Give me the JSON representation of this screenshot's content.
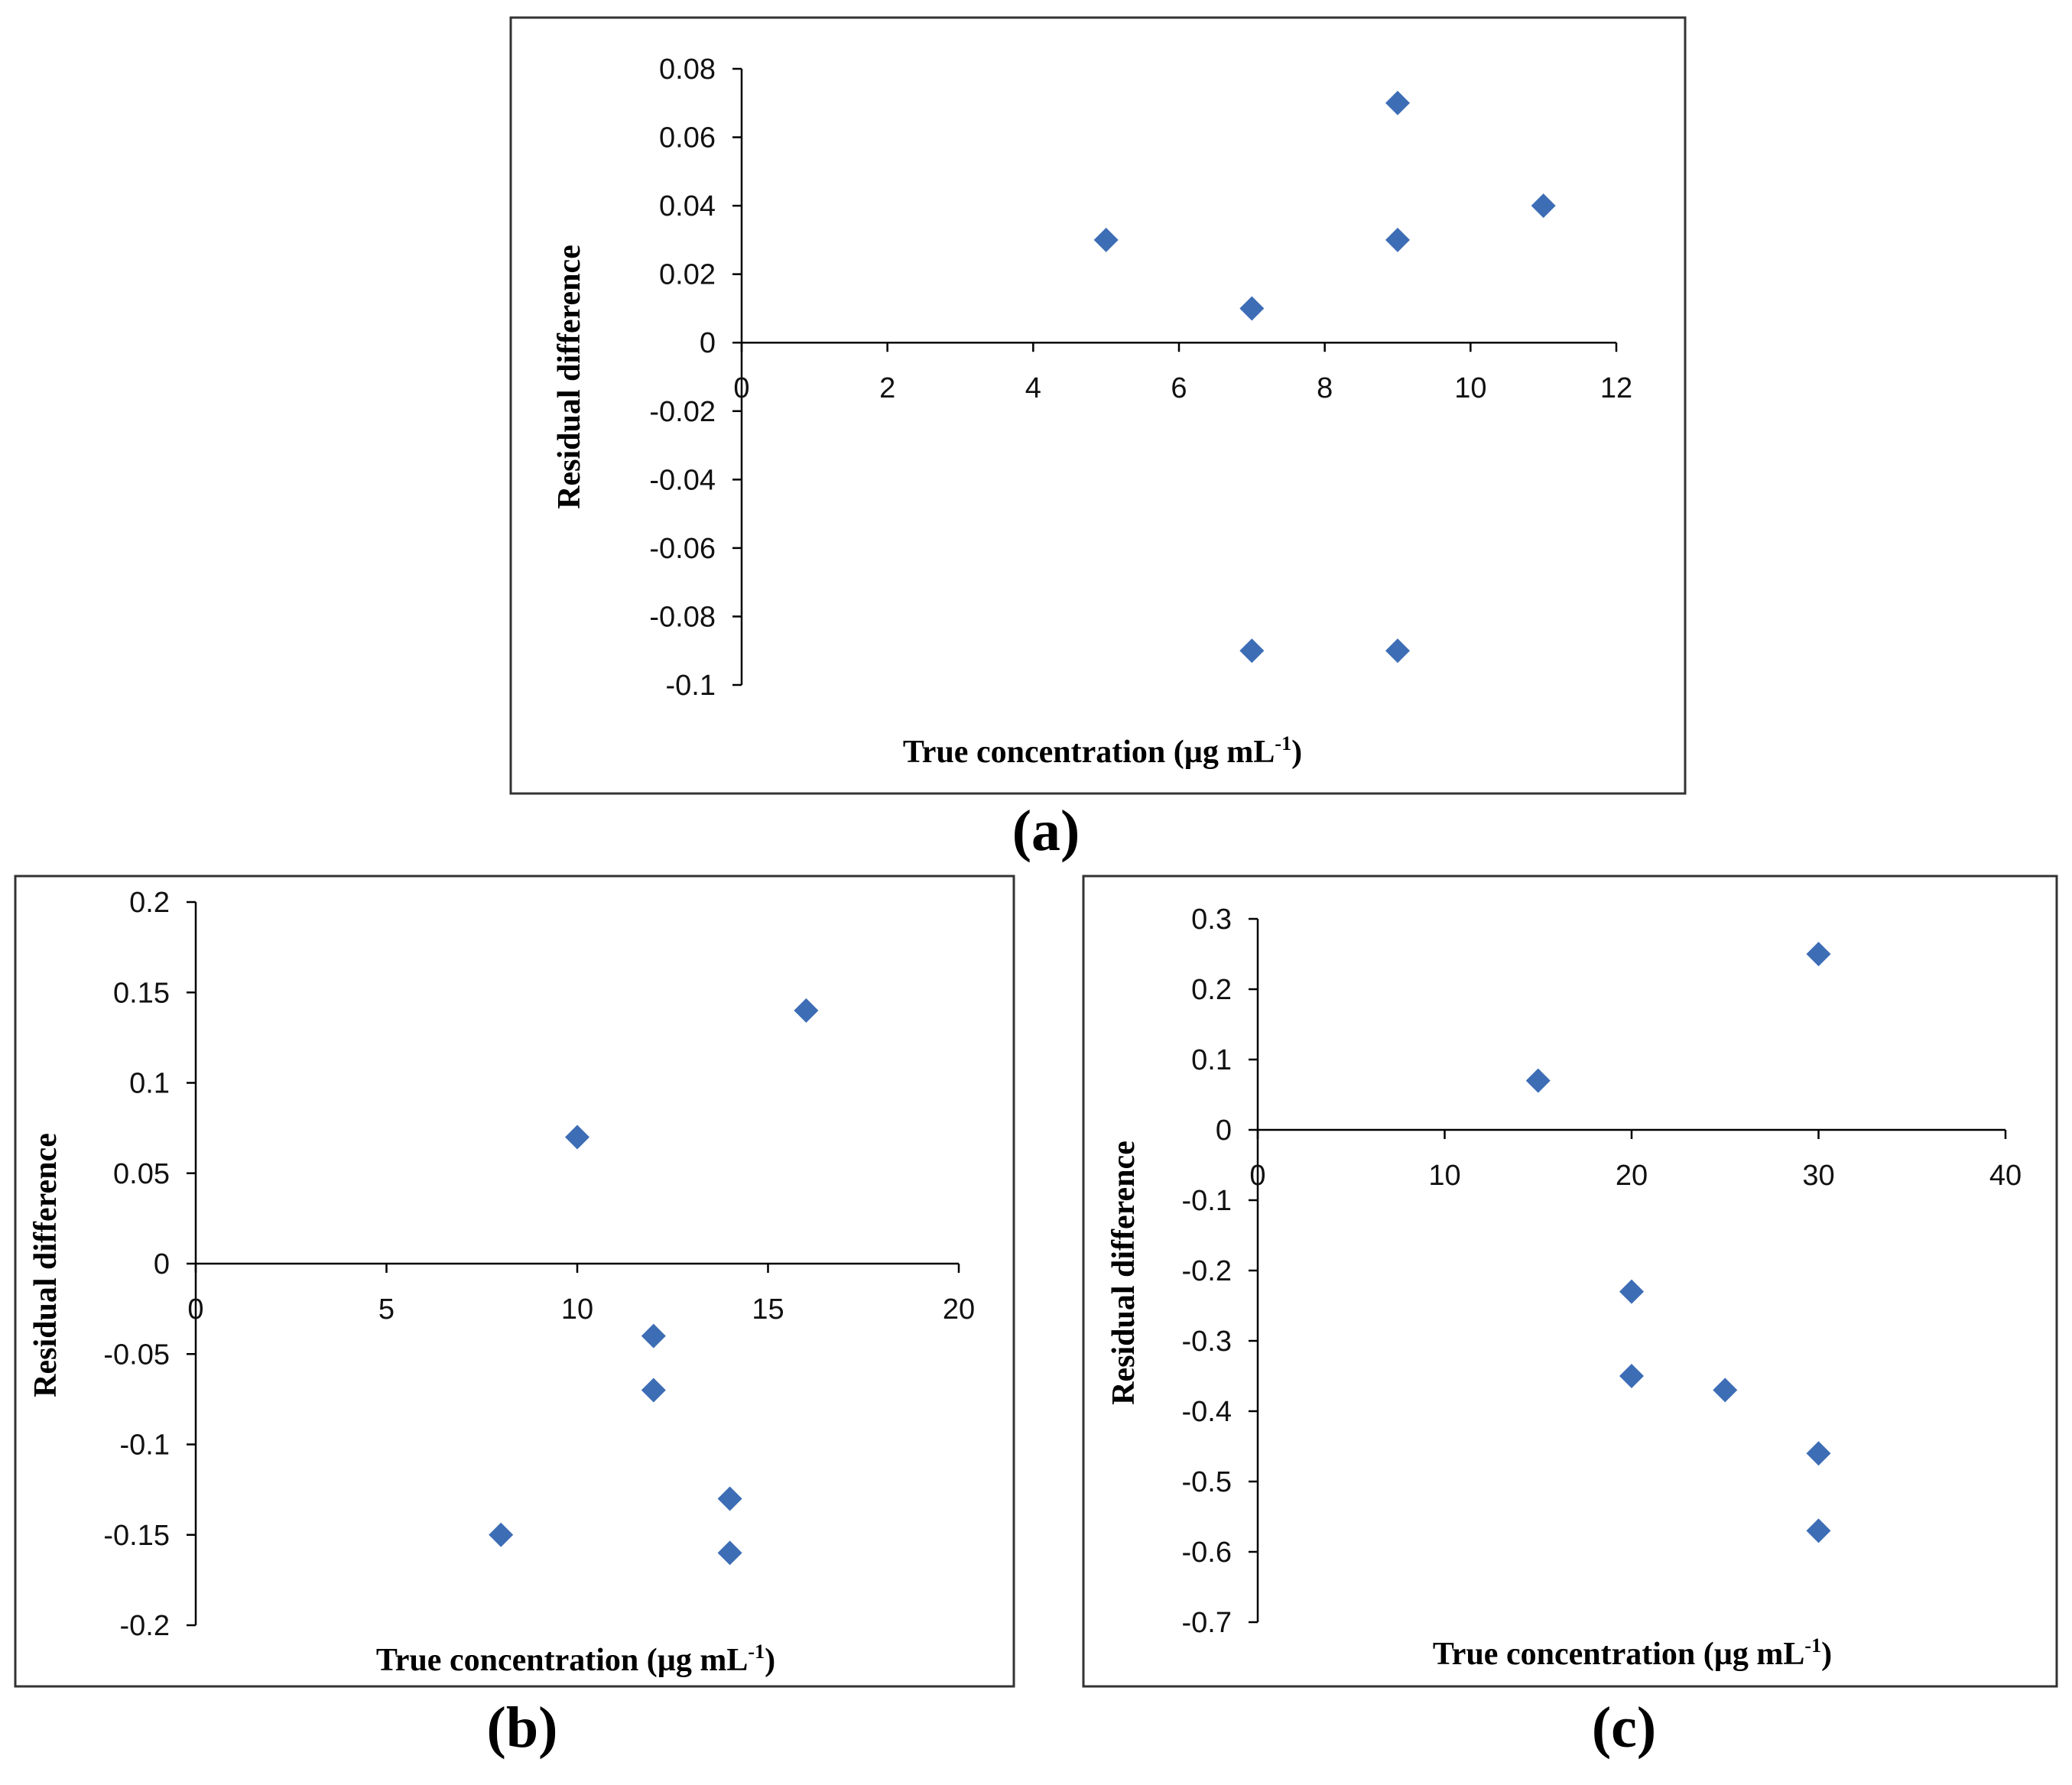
{
  "colors": {
    "marker": "#3d6db5",
    "axis": "#000000",
    "frame": "#333333"
  },
  "chart_data": [
    {
      "type": "scatter",
      "panel_label": "(a)",
      "xlabel": "True concentration (µg mL",
      "xlabel_sup": "-1",
      "xlabel_close": ")",
      "ylabel": "Residual difference",
      "xlim": [
        0,
        12
      ],
      "ylim": [
        -0.1,
        0.08
      ],
      "xticks": [
        "0",
        "2",
        "4",
        "6",
        "8",
        "10",
        "12"
      ],
      "yticks": [
        "0.08",
        "0.06",
        "0.04",
        "0.02",
        "0",
        "-0.02",
        "-0.04",
        "-0.06",
        "-0.08",
        "-0.1"
      ],
      "grid": false,
      "points": [
        {
          "x": 5,
          "y": 0.03
        },
        {
          "x": 7,
          "y": 0.01
        },
        {
          "x": 9,
          "y": 0.07
        },
        {
          "x": 9,
          "y": 0.03
        },
        {
          "x": 11,
          "y": 0.04
        },
        {
          "x": 7,
          "y": -0.09
        },
        {
          "x": 9,
          "y": -0.09
        }
      ]
    },
    {
      "type": "scatter",
      "panel_label": "(b)",
      "xlabel": "True concentration (µg mL",
      "xlabel_sup": "-1",
      "xlabel_close": ")",
      "ylabel": "Residual difference",
      "xlim": [
        0,
        20
      ],
      "ylim": [
        -0.2,
        0.2
      ],
      "xticks": [
        "0",
        "5",
        "10",
        "15",
        "20"
      ],
      "yticks": [
        "0.2",
        "0.15",
        "0.1",
        "0.05",
        "0",
        "-0.05",
        "-0.1",
        "-0.15",
        "-0.2"
      ],
      "grid": false,
      "points": [
        {
          "x": 10,
          "y": 0.07
        },
        {
          "x": 16,
          "y": 0.14
        },
        {
          "x": 12,
          "y": -0.04
        },
        {
          "x": 12,
          "y": -0.07
        },
        {
          "x": 14,
          "y": -0.13
        },
        {
          "x": 8,
          "y": -0.15
        },
        {
          "x": 14,
          "y": -0.16
        }
      ]
    },
    {
      "type": "scatter",
      "panel_label": "(c)",
      "xlabel": "True concentration (µg mL",
      "xlabel_sup": "-1",
      "xlabel_close": ")",
      "ylabel": "Residual difference",
      "xlim": [
        0,
        40
      ],
      "ylim": [
        -0.7,
        0.3
      ],
      "xticks": [
        "0",
        "10",
        "20",
        "30",
        "40"
      ],
      "yticks": [
        "0.3",
        "0.2",
        "0.1",
        "0",
        "-0.1",
        "-0.2",
        "-0.3",
        "-0.4",
        "-0.5",
        "-0.6",
        "-0.7"
      ],
      "grid": false,
      "points": [
        {
          "x": 15,
          "y": 0.07
        },
        {
          "x": 30,
          "y": 0.25
        },
        {
          "x": 20,
          "y": -0.23
        },
        {
          "x": 20,
          "y": -0.35
        },
        {
          "x": 25,
          "y": -0.37
        },
        {
          "x": 30,
          "y": -0.46
        },
        {
          "x": 30,
          "y": -0.57
        }
      ]
    }
  ]
}
